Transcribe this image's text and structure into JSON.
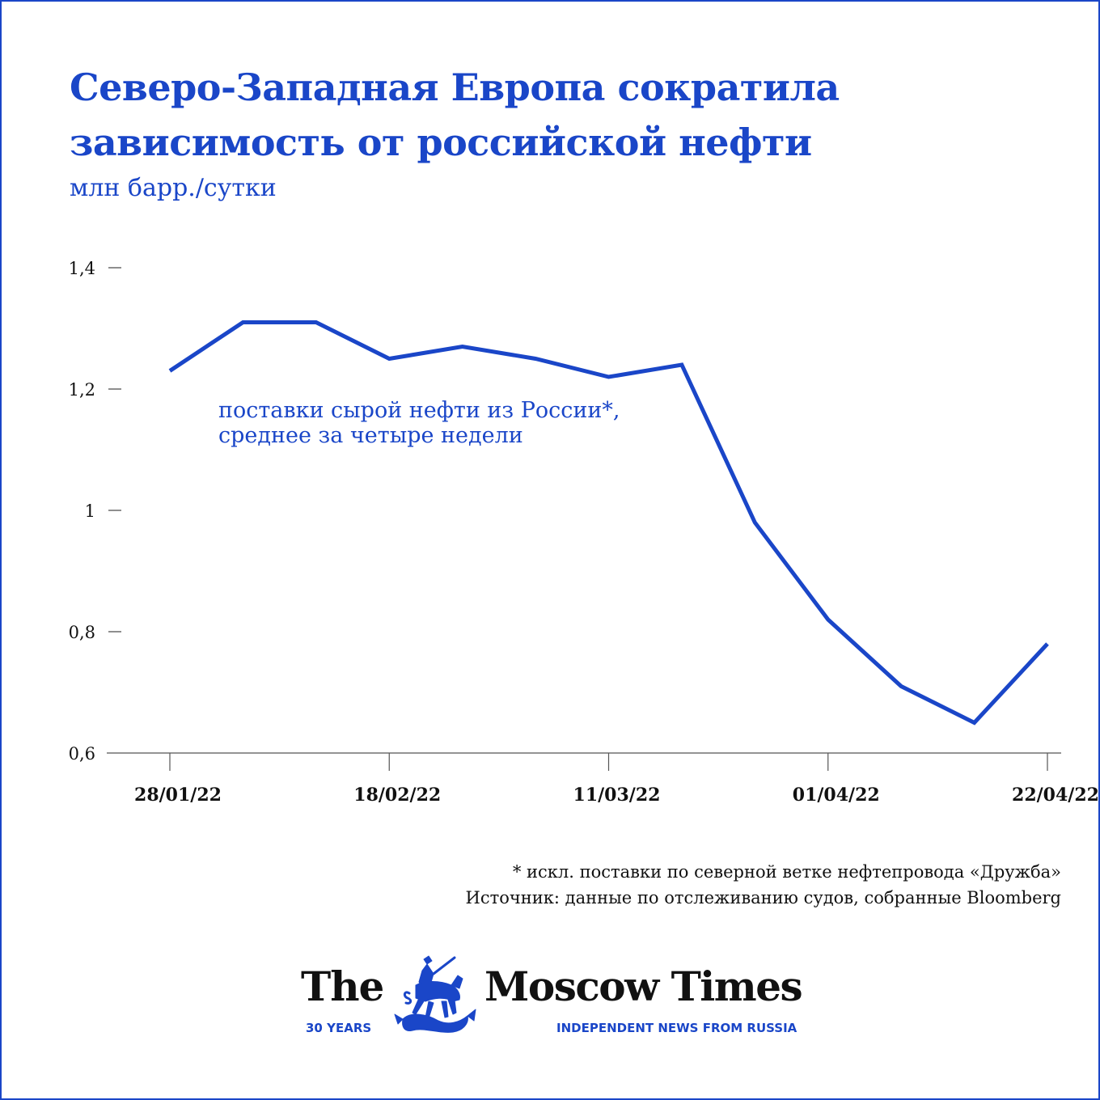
{
  "header": {
    "title_line1": "Северо-Западная Европа сократила",
    "title_line2": "зависимость от российской нефти",
    "subtitle": "млн барр./сутки"
  },
  "chart_data": {
    "type": "line",
    "title": "Северо-Западная Европа сократила зависимость от российской нефти",
    "ylabel": "млн барр./сутки",
    "ylim": [
      0.6,
      1.4
    ],
    "yticks": [
      {
        "value": 0.6,
        "label": "0,6"
      },
      {
        "value": 0.8,
        "label": "0,8"
      },
      {
        "value": 1.0,
        "label": "1"
      },
      {
        "value": 1.2,
        "label": "1,2"
      },
      {
        "value": 1.4,
        "label": "1,4"
      }
    ],
    "x": [
      "28/01/22",
      "04/02/22",
      "11/02/22",
      "18/02/22",
      "25/02/22",
      "04/03/22",
      "11/03/22",
      "18/03/22",
      "25/03/22",
      "01/04/22",
      "08/04/22",
      "15/04/22",
      "22/04/22"
    ],
    "xtick_labels": [
      "28/01/22",
      "18/02/22",
      "11/03/22",
      "01/04/22",
      "22/04/22"
    ],
    "series": [
      {
        "values": [
          1.23,
          1.31,
          1.31,
          1.25,
          1.27,
          1.25,
          1.22,
          1.24,
          0.98,
          0.82,
          0.71,
          0.65,
          0.78
        ]
      }
    ],
    "annotation": {
      "line1": "поставки сырой нефти из России*,",
      "line2": "среднее за четыре недели"
    },
    "grid": false,
    "legend": "none",
    "color": "#1a46c8"
  },
  "footnotes": {
    "note": "* искл. поставки по северной ветке нефтепровода «Дружба»",
    "source": "Источник: данные по отслеживанию судов, собранные Bloomberg"
  },
  "logo": {
    "name_the": "The",
    "name_rest": "Moscow Times",
    "tag_years": "30 YEARS",
    "tag_news": "INDEPENDENT NEWS FROM RUSSIA",
    "emblem_icon": "st-george-emblem-icon"
  }
}
